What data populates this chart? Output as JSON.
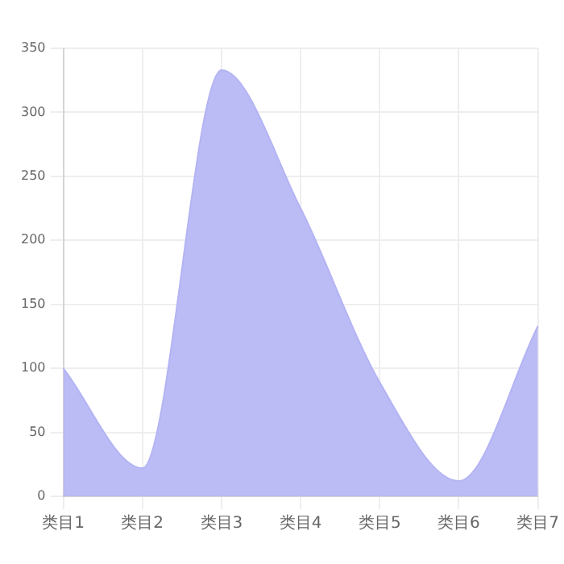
{
  "chart_data": {
    "type": "area",
    "categories": [
      "类目1",
      "类目2",
      "类目3",
      "类目4",
      "类目5",
      "类目6",
      "类目7"
    ],
    "series": [
      {
        "color": "#b4b4f4",
        "values": [
          100,
          22,
          333,
          225,
          89,
          12,
          133
        ]
      }
    ],
    "ylim": [
      0,
      350
    ],
    "yticks": [
      0,
      50,
      100,
      150,
      200,
      250,
      300,
      350
    ],
    "grid": true,
    "legend": false
  }
}
